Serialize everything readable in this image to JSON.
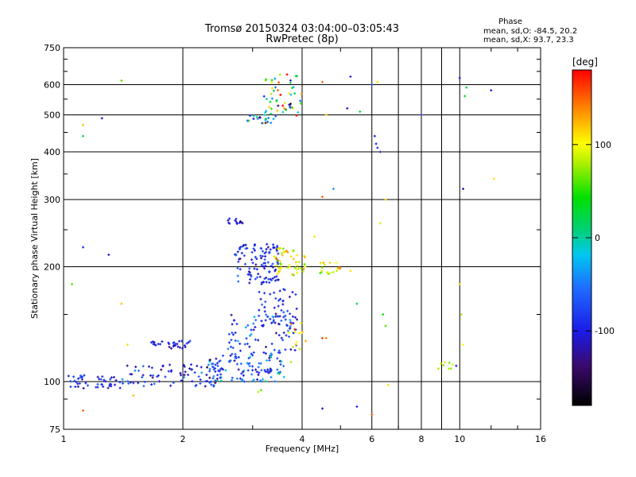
{
  "chart_data": {
    "type": "scatter",
    "title": "Tromsø 20150324 03:04:00–03:05:43",
    "subtitle": "RwPretec (8p)",
    "xlabel": "Frequency [MHz]",
    "ylabel": "Stationary phase Virtual Height [km]",
    "x_scale": "log",
    "y_scale": "log",
    "xlim": [
      1,
      16
    ],
    "ylim": [
      75,
      750
    ],
    "x_ticks": [
      "1",
      "2",
      "4",
      "6",
      "8",
      "10",
      "16"
    ],
    "x_tick_values": [
      1,
      2,
      4,
      6,
      8,
      10,
      16
    ],
    "y_ticks": [
      "75",
      "100",
      "200",
      "300",
      "400",
      "500",
      "600",
      "750"
    ],
    "y_tick_values": [
      75,
      100,
      200,
      300,
      400,
      500,
      600,
      750
    ],
    "grid": true,
    "colorbar": {
      "label": "[deg]",
      "range": [
        -180,
        180
      ],
      "ticks": [
        "100",
        "0",
        "-100"
      ],
      "tick_values": [
        100,
        0,
        -100
      ]
    },
    "stats": {
      "heading": "Phase",
      "o_line": "mean, sd,O: -84.5, 20.2",
      "x_line": "mean, sd,X: 93.7, 23.3"
    },
    "clusters": [
      {
        "f_min": 1.0,
        "f_max": 1.4,
        "h_min": 96,
        "h_max": 104,
        "count": 45,
        "phase_mean": -95,
        "phase_sd": 18
      },
      {
        "f_min": 1.4,
        "f_max": 2.5,
        "h_min": 97,
        "h_max": 112,
        "count": 80,
        "phase_mean": -90,
        "phase_sd": 25
      },
      {
        "f_min": 1.65,
        "f_max": 2.1,
        "h_min": 122,
        "h_max": 128,
        "count": 30,
        "phase_mean": -98,
        "phase_sd": 12
      },
      {
        "f_min": 2.3,
        "f_max": 3.6,
        "h_min": 100,
        "h_max": 118,
        "count": 110,
        "phase_mean": -70,
        "phase_sd": 40
      },
      {
        "f_min": 2.6,
        "f_max": 3.9,
        "h_min": 118,
        "h_max": 150,
        "count": 90,
        "phase_mean": -80,
        "phase_sd": 30
      },
      {
        "f_min": 2.7,
        "f_max": 3.5,
        "h_min": 180,
        "h_max": 230,
        "count": 110,
        "phase_mean": -95,
        "phase_sd": 20
      },
      {
        "f_min": 3.1,
        "f_max": 3.9,
        "h_min": 140,
        "h_max": 175,
        "count": 40,
        "phase_mean": -90,
        "phase_sd": 22
      },
      {
        "f_min": 2.6,
        "f_max": 2.85,
        "h_min": 258,
        "h_max": 268,
        "count": 14,
        "phase_mean": -100,
        "phase_sd": 10
      },
      {
        "f_min": 3.4,
        "f_max": 4.1,
        "h_min": 190,
        "h_max": 225,
        "count": 50,
        "phase_mean": 95,
        "phase_sd": 25
      },
      {
        "f_min": 4.4,
        "f_max": 5.0,
        "h_min": 190,
        "h_max": 205,
        "count": 18,
        "phase_mean": 95,
        "phase_sd": 20
      },
      {
        "f_min": 2.9,
        "f_max": 3.4,
        "h_min": 475,
        "h_max": 500,
        "count": 20,
        "phase_mean": -60,
        "phase_sd": 60
      },
      {
        "f_min": 3.2,
        "f_max": 4.0,
        "h_min": 495,
        "h_max": 640,
        "count": 55,
        "phase_mean": 40,
        "phase_sd": 90
      },
      {
        "f_min": 3.7,
        "f_max": 4.1,
        "h_min": 110,
        "h_max": 150,
        "count": 14,
        "phase_mean": 110,
        "phase_sd": 25
      },
      {
        "f_min": 8.6,
        "f_max": 9.6,
        "h_min": 108,
        "h_max": 113,
        "count": 8,
        "phase_mean": 90,
        "phase_sd": 20
      }
    ],
    "scatter_points": [
      {
        "x": 6.1,
        "y": 440,
        "phase": -100
      },
      {
        "x": 6.15,
        "y": 420,
        "phase": -95
      },
      {
        "x": 6.2,
        "y": 410,
        "phase": -90
      },
      {
        "x": 6.3,
        "y": 400,
        "phase": -110
      },
      {
        "x": 6.0,
        "y": 600,
        "phase": -80
      },
      {
        "x": 6.2,
        "y": 610,
        "phase": 110
      },
      {
        "x": 10.0,
        "y": 625,
        "phase": -110
      },
      {
        "x": 10.2,
        "y": 320,
        "phase": -120
      },
      {
        "x": 12.0,
        "y": 580,
        "phase": -100
      },
      {
        "x": 12.2,
        "y": 340,
        "phase": 110
      },
      {
        "x": 10.3,
        "y": 560,
        "phase": 40
      },
      {
        "x": 10.4,
        "y": 590,
        "phase": 30
      },
      {
        "x": 8.0,
        "y": 500,
        "phase": -90
      },
      {
        "x": 5.2,
        "y": 520,
        "phase": -110
      },
      {
        "x": 5.6,
        "y": 510,
        "phase": 20
      },
      {
        "x": 4.6,
        "y": 500,
        "phase": 120
      },
      {
        "x": 4.5,
        "y": 610,
        "phase": 150
      },
      {
        "x": 5.3,
        "y": 630,
        "phase": -100
      },
      {
        "x": 4.8,
        "y": 320,
        "phase": -40
      },
      {
        "x": 4.5,
        "y": 305,
        "phase": 150
      },
      {
        "x": 6.5,
        "y": 300,
        "phase": 120
      },
      {
        "x": 6.3,
        "y": 260,
        "phase": 90
      },
      {
        "x": 6.4,
        "y": 150,
        "phase": 40
      },
      {
        "x": 6.5,
        "y": 140,
        "phase": 60
      },
      {
        "x": 6.6,
        "y": 98,
        "phase": 110
      },
      {
        "x": 6.0,
        "y": 82,
        "phase": 150
      },
      {
        "x": 5.5,
        "y": 86,
        "phase": -100
      },
      {
        "x": 4.5,
        "y": 85,
        "phase": -110
      },
      {
        "x": 10.0,
        "y": 180,
        "phase": 120
      },
      {
        "x": 10.1,
        "y": 150,
        "phase": 80
      },
      {
        "x": 9.8,
        "y": 110,
        "phase": -110
      },
      {
        "x": 10.2,
        "y": 125,
        "phase": 100
      },
      {
        "x": 1.12,
        "y": 470,
        "phase": 120
      },
      {
        "x": 1.12,
        "y": 440,
        "phase": 20
      },
      {
        "x": 1.25,
        "y": 490,
        "phase": -110
      },
      {
        "x": 1.4,
        "y": 615,
        "phase": 60
      },
      {
        "x": 1.12,
        "y": 225,
        "phase": -90
      },
      {
        "x": 1.3,
        "y": 215,
        "phase": -110
      },
      {
        "x": 1.05,
        "y": 180,
        "phase": 60
      },
      {
        "x": 1.4,
        "y": 160,
        "phase": 120
      },
      {
        "x": 1.45,
        "y": 125,
        "phase": 110
      },
      {
        "x": 1.12,
        "y": 84,
        "phase": 150
      },
      {
        "x": 1.5,
        "y": 92,
        "phase": 120
      },
      {
        "x": 3.1,
        "y": 94,
        "phase": 80
      },
      {
        "x": 3.15,
        "y": 95,
        "phase": 60
      },
      {
        "x": 5.3,
        "y": 195,
        "phase": 110
      },
      {
        "x": 5.5,
        "y": 160,
        "phase": 20
      },
      {
        "x": 4.5,
        "y": 130,
        "phase": 160
      },
      {
        "x": 4.6,
        "y": 130,
        "phase": 140
      },
      {
        "x": 4.3,
        "y": 240,
        "phase": 110
      }
    ]
  }
}
